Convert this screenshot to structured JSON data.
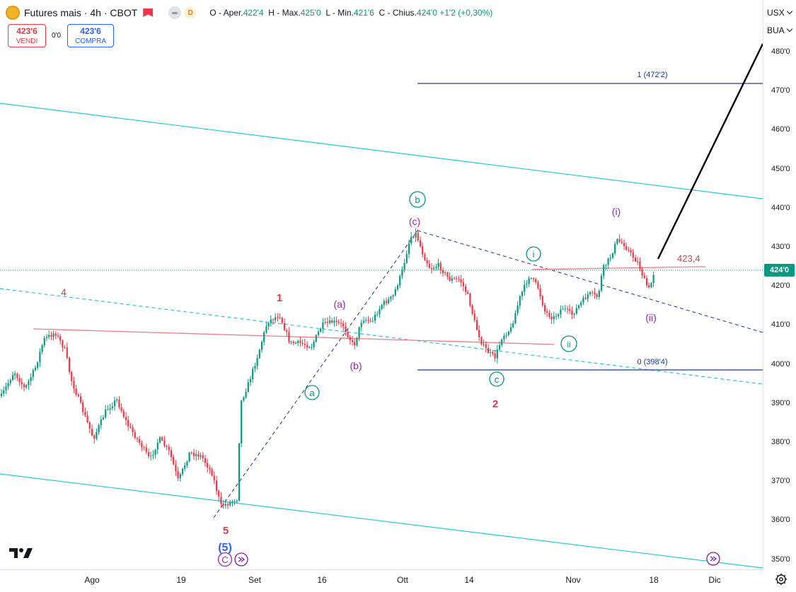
{
  "header": {
    "symbol_title": "Futures mais · 4h · CBOT",
    "ohlc": {
      "o_label": "O - Aper.",
      "o": "422'4",
      "h_label": "H - Max.",
      "h": "425'0",
      "l_label": "L - Min.",
      "l": "421'6",
      "c_label": "C - Chius.",
      "c": "424'0",
      "change": "+1'2 (+0,30%)"
    },
    "pill_d": "D"
  },
  "trade": {
    "sell_price": "423'6",
    "sell_label": "VENDI",
    "spread": "0'0",
    "buy_price": "423'6",
    "buy_label": "COMPRA"
  },
  "currency_selector": "USX",
  "unit_selector": "BUA",
  "price_axis": {
    "ticks": [
      "480'0",
      "470'0",
      "460'0",
      "450'0",
      "440'0",
      "430'0",
      "420'0",
      "410'0",
      "400'0",
      "390'0",
      "380'0",
      "370'0",
      "360'0",
      "350'0"
    ],
    "current_price": "424'0"
  },
  "time_axis": {
    "ticks": [
      "Ago",
      "19",
      "Set",
      "16",
      "Ott",
      "14",
      "Nov",
      "18",
      "Dic"
    ]
  },
  "annotations": {
    "fib_1": "1 (472'2)",
    "fib_0": "0 (398'4)",
    "level_label": "423,4",
    "wave_labels_red": [
      "4",
      "1",
      "5",
      "2"
    ],
    "wave_labels_purple": [
      "(a)",
      "(b)",
      "(c)",
      "(i)",
      "(ii)"
    ],
    "wave_labels_teal_circled": [
      "a",
      "b",
      "c",
      "i",
      "ii"
    ],
    "wave_5_blue": "(5)",
    "wave_C_circled": "C"
  },
  "colors": {
    "up": "#089981",
    "down": "#f23645",
    "teal_channel": "#26c6da",
    "navy": "#1a3a8a",
    "purple": "#9c27b0",
    "wave_red": "#e53950"
  },
  "icons": [
    "tradingview-logo-icon",
    "settings-gear-icon",
    "jump-to-realtime-icon"
  ]
}
